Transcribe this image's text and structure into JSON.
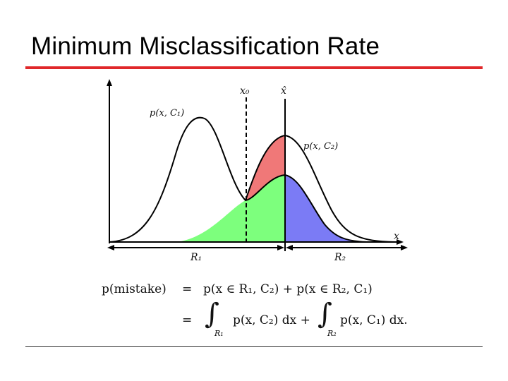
{
  "slide": {
    "title": "Minimum Misclassification Rate",
    "accent_color": "#e0282a"
  },
  "diagram": {
    "labels": {
      "x0": "x₀",
      "xhat": "x̂",
      "p1": "p(x, C₁)",
      "p2": "p(x, C₂)",
      "x_axis": "x",
      "r1": "R₁",
      "r2": "R₂"
    },
    "region_colors": {
      "red": "#f07878",
      "green": "#7dff7d",
      "blue": "#7b7bf5"
    }
  },
  "equation": {
    "line1_lhs": "p(mistake)",
    "line1_eq": "=",
    "line1_rhs": "p(x ∈ R₁, C₂) + p(x ∈ R₂, C₁)",
    "line2_eq": "=",
    "int1_integrand": "p(x, C₂) dx +",
    "int1_sub": "R₁",
    "int2_integrand": "p(x, C₁) dx.",
    "int2_sub": "R₂"
  }
}
